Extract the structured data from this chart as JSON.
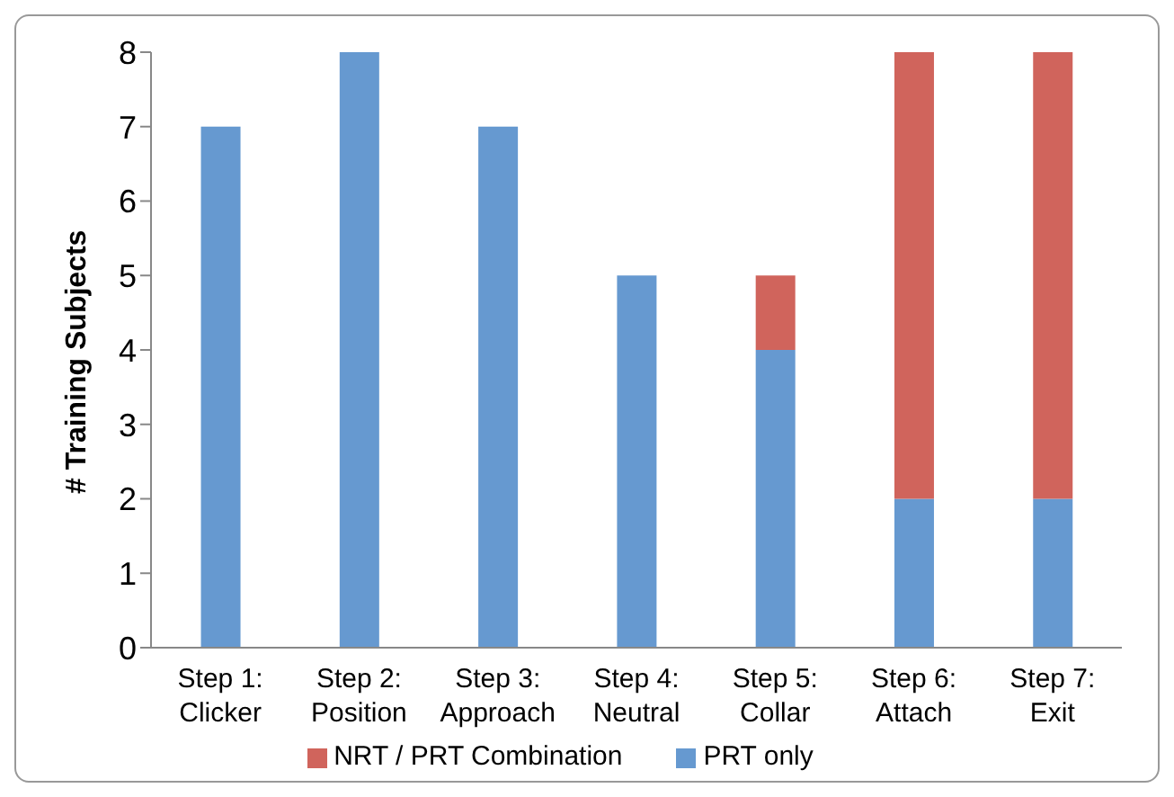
{
  "chart_data": {
    "type": "bar",
    "stacked": true,
    "ylabel": "# Training Subjects",
    "categories": [
      "Step 1:\nClicker",
      "Step 2:\nPosition",
      "Step 3:\nApproach",
      "Step 4:\nNeutral",
      "Step 5:\nCollar",
      "Step 6:\nAttach",
      "Step 7:\nExit"
    ],
    "series": [
      {
        "name": "PRT only",
        "color": "#6699d0",
        "values": [
          7,
          8,
          7,
          5,
          4,
          2,
          2
        ]
      },
      {
        "name": "NRT / PRT Combination",
        "color": "#d0645c",
        "values": [
          null,
          null,
          null,
          null,
          1,
          6,
          6
        ]
      }
    ],
    "ylim": [
      0,
      8
    ],
    "yticks": [
      0,
      1,
      2,
      3,
      4,
      5,
      6,
      7,
      8
    ],
    "grid": false,
    "legend": "bottom"
  }
}
